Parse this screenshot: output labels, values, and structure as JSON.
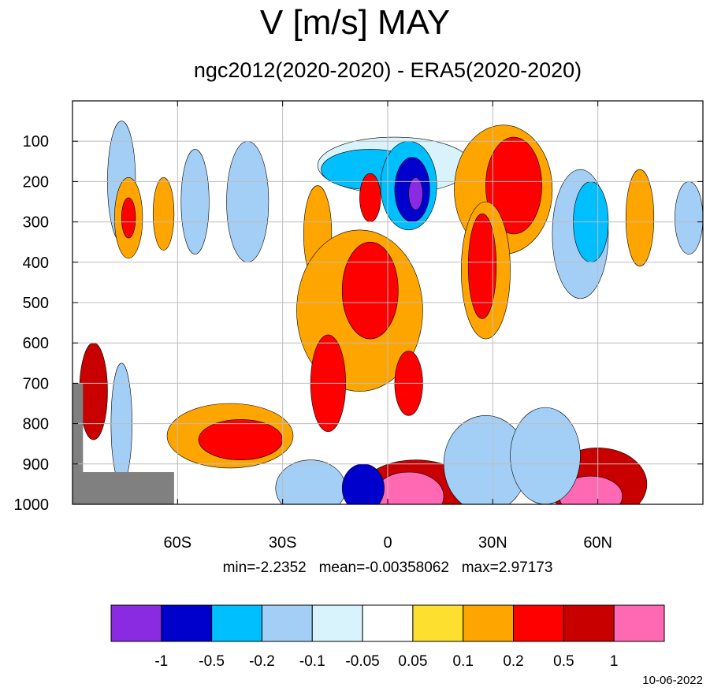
{
  "chart_data": {
    "type": "heatmap",
    "title": "V [m/s] MAY",
    "subtitle": "ngc2012(2020-2020) - ERA5(2020-2020)",
    "stats_text": "min=-2.2352   mean=-0.00358062   max=2.97173",
    "date": "10-06-2022",
    "xlabel": "",
    "ylabel": "",
    "x_range": [
      -90,
      90
    ],
    "y_range": [
      0,
      1000
    ],
    "y_axis": "pressure, increasing downward",
    "x_ticks": [
      {
        "value": -60,
        "label": "60S"
      },
      {
        "value": -30,
        "label": "30S"
      },
      {
        "value": 0,
        "label": "0"
      },
      {
        "value": 30,
        "label": "30N"
      },
      {
        "value": 60,
        "label": "60N"
      }
    ],
    "y_ticks": [
      100,
      200,
      300,
      400,
      500,
      600,
      700,
      800,
      900,
      1000
    ],
    "grid": true,
    "colorbar": {
      "position": "bottom",
      "levels": [
        "-1",
        "-0.5",
        "-0.2",
        "-0.1",
        "-0.05",
        "0.05",
        "0.1",
        "0.2",
        "0.5",
        "1"
      ],
      "colors": [
        "#8a2be2",
        "#0000cd",
        "#00bfff",
        "#a3cff7",
        "#d8f3fb",
        "#ffffff",
        "#fde02f",
        "#ffa500",
        "#ff0000",
        "#c80000",
        "#ff69b4"
      ]
    },
    "blobs": [
      {
        "lat": -76,
        "lev": 200,
        "rlat": 4,
        "rlev": 150,
        "cls": 3
      },
      {
        "lat": -64,
        "lev": 280,
        "rlat": 3,
        "rlev": 90,
        "cls": 7
      },
      {
        "lat": -74,
        "lev": 290,
        "rlat": 4,
        "rlev": 100,
        "cls": 7
      },
      {
        "lat": -74,
        "lev": 290,
        "rlat": 2,
        "rlev": 50,
        "cls": 8
      },
      {
        "lat": -55,
        "lev": 250,
        "rlat": 4,
        "rlev": 130,
        "cls": 3
      },
      {
        "lat": -40,
        "lev": 250,
        "rlat": 6,
        "rlev": 150,
        "cls": 3
      },
      {
        "lat": 2,
        "lev": 160,
        "rlat": 22,
        "rlev": 70,
        "cls": 4
      },
      {
        "lat": -5,
        "lev": 170,
        "rlat": 14,
        "rlev": 50,
        "cls": 2
      },
      {
        "lat": 6,
        "lev": 210,
        "rlat": 8,
        "rlev": 110,
        "cls": 2
      },
      {
        "lat": 7,
        "lev": 220,
        "rlat": 5,
        "rlev": 80,
        "cls": 1
      },
      {
        "lat": 8,
        "lev": 230,
        "rlat": 2,
        "rlev": 40,
        "cls": 0
      },
      {
        "lat": -5,
        "lev": 240,
        "rlat": 3,
        "rlev": 60,
        "cls": 8
      },
      {
        "lat": 33,
        "lev": 220,
        "rlat": 14,
        "rlev": 160,
        "cls": 7
      },
      {
        "lat": 36,
        "lev": 210,
        "rlat": 8,
        "rlev": 120,
        "cls": 8
      },
      {
        "lat": 28,
        "lev": 420,
        "rlat": 7,
        "rlev": 170,
        "cls": 7
      },
      {
        "lat": 27,
        "lev": 410,
        "rlat": 4,
        "rlev": 130,
        "cls": 8
      },
      {
        "lat": -20,
        "lev": 330,
        "rlat": 4,
        "rlev": 120,
        "cls": 7
      },
      {
        "lat": -8,
        "lev": 520,
        "rlat": 18,
        "rlev": 200,
        "cls": 7
      },
      {
        "lat": -5,
        "lev": 470,
        "rlat": 8,
        "rlev": 120,
        "cls": 8
      },
      {
        "lat": 55,
        "lev": 330,
        "rlat": 8,
        "rlev": 160,
        "cls": 3
      },
      {
        "lat": 58,
        "lev": 300,
        "rlat": 5,
        "rlev": 100,
        "cls": 2
      },
      {
        "lat": 72,
        "lev": 290,
        "rlat": 4,
        "rlev": 120,
        "cls": 7
      },
      {
        "lat": 86,
        "lev": 290,
        "rlat": 4,
        "rlev": 90,
        "cls": 3
      },
      {
        "lat": -45,
        "lev": 830,
        "rlat": 18,
        "rlev": 80,
        "cls": 7
      },
      {
        "lat": -42,
        "lev": 840,
        "rlat": 12,
        "rlev": 50,
        "cls": 8
      },
      {
        "lat": 8,
        "lev": 970,
        "rlat": 16,
        "rlev": 80,
        "cls": 9
      },
      {
        "lat": 6,
        "lev": 980,
        "rlat": 10,
        "rlev": 60,
        "cls": 10
      },
      {
        "lat": 60,
        "lev": 950,
        "rlat": 14,
        "rlev": 90,
        "cls": 9
      },
      {
        "lat": 58,
        "lev": 980,
        "rlat": 9,
        "rlev": 50,
        "cls": 10
      },
      {
        "lat": -22,
        "lev": 960,
        "rlat": 10,
        "rlev": 70,
        "cls": 3
      },
      {
        "lat": -7,
        "lev": 960,
        "rlat": 6,
        "rlev": 60,
        "cls": 1
      },
      {
        "lat": 28,
        "lev": 900,
        "rlat": 12,
        "rlev": 120,
        "cls": 3
      },
      {
        "lat": 45,
        "lev": 880,
        "rlat": 10,
        "rlev": 120,
        "cls": 3
      },
      {
        "lat": -84,
        "lev": 720,
        "rlat": 4,
        "rlev": 120,
        "cls": 9
      },
      {
        "lat": -76,
        "lev": 800,
        "rlat": 3,
        "rlev": 150,
        "cls": 3
      },
      {
        "lat": 6,
        "lev": 700,
        "rlat": 4,
        "rlev": 80,
        "cls": 8
      },
      {
        "lat": -17,
        "lev": 700,
        "rlat": 5,
        "rlev": 120,
        "cls": 8
      }
    ],
    "grey_mask_note": "terrain mask at lower left (below ground)"
  }
}
